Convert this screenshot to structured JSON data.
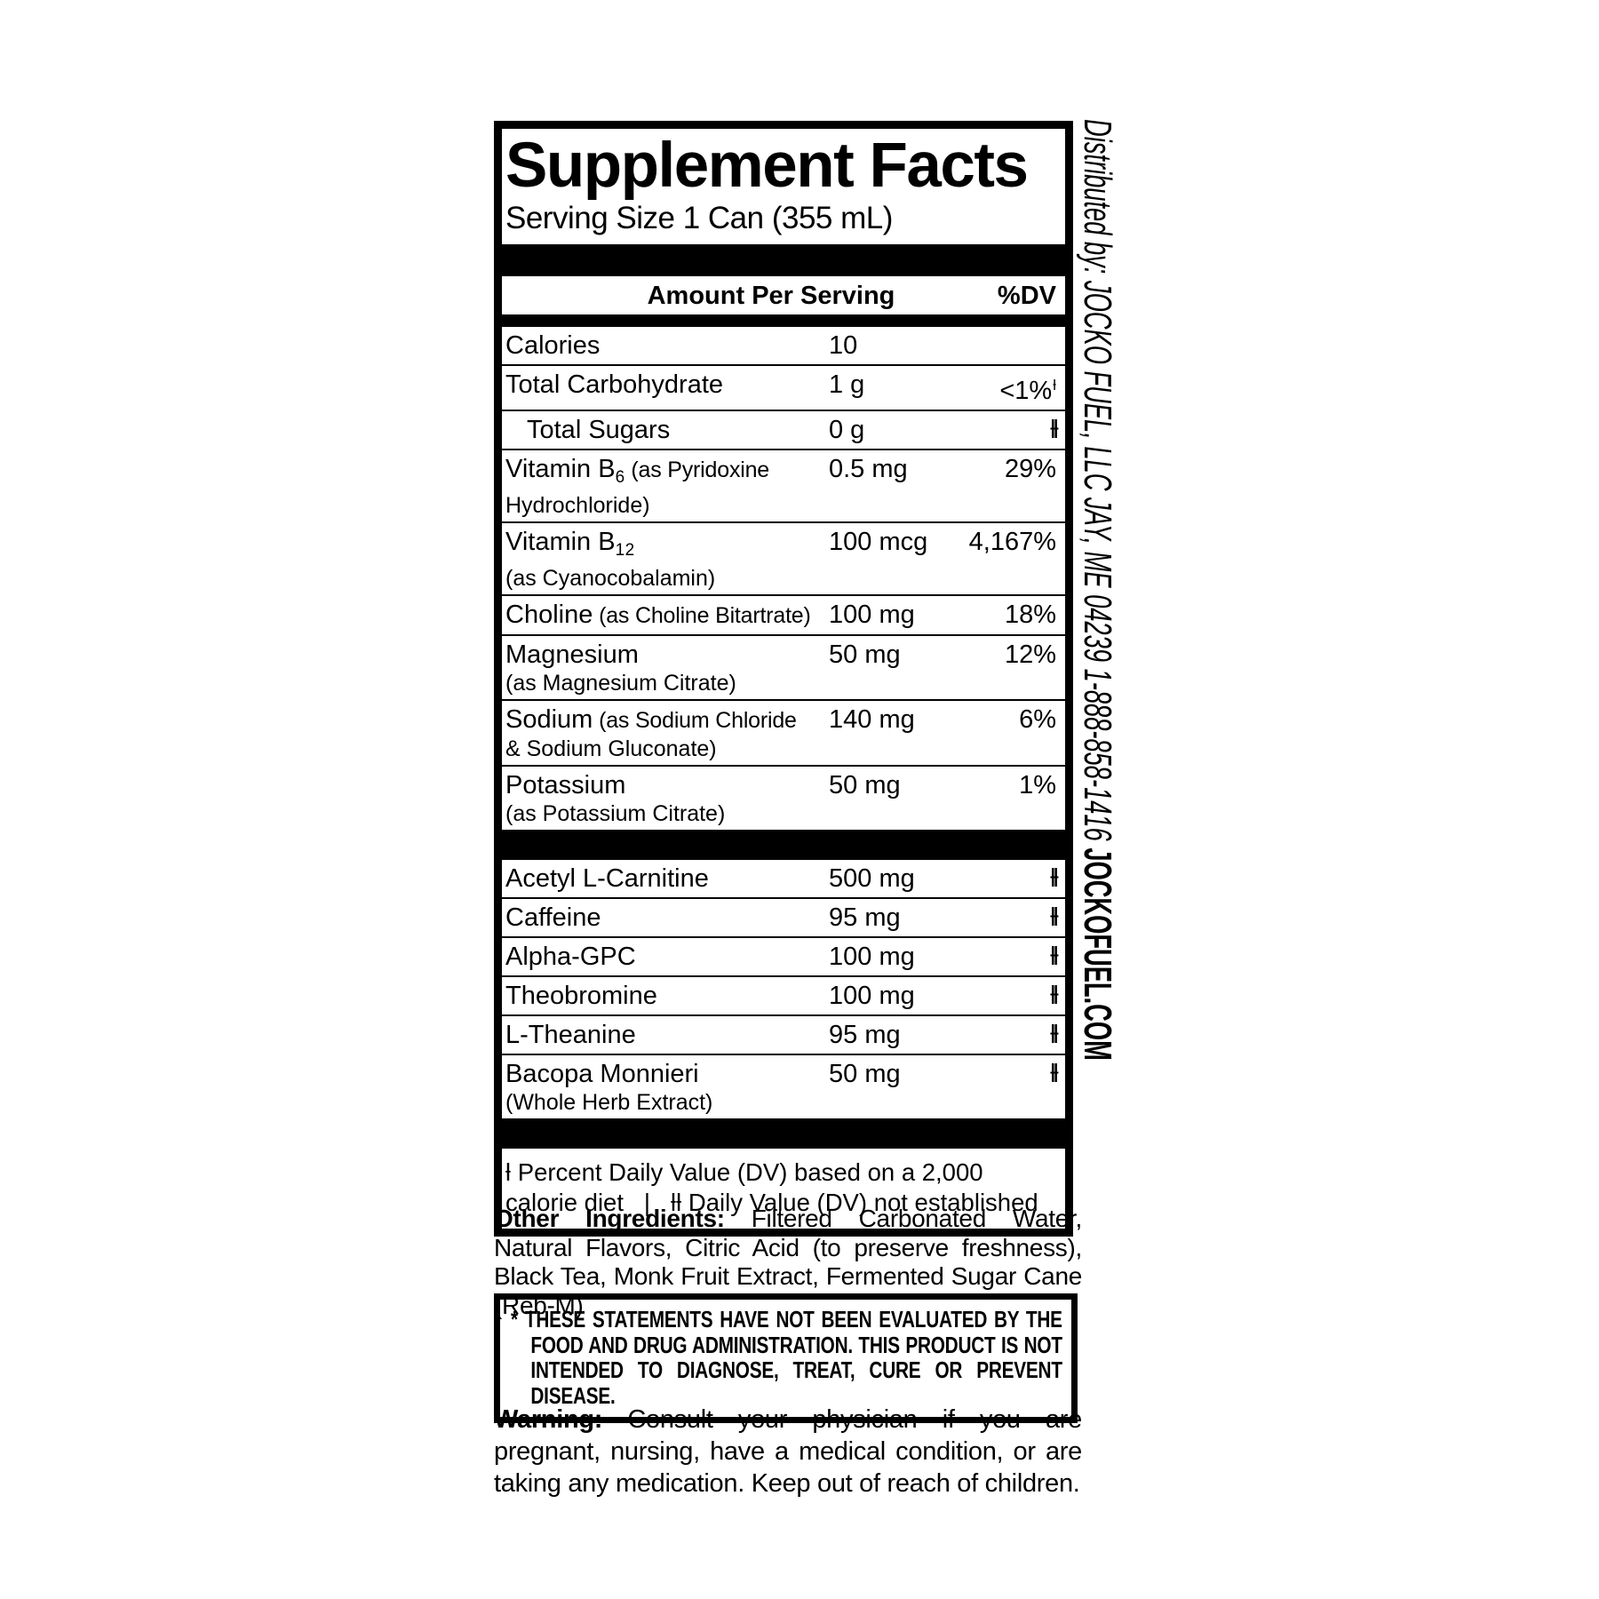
{
  "page": {
    "background": "#ffffff",
    "ink": "#000000"
  },
  "label": {
    "title": "Supplement Facts",
    "serving_size": "Serving Size 1 Can (355 mL)",
    "columns": {
      "amount_header": "Amount Per Serving",
      "dv_header": "%DV"
    },
    "section1": [
      {
        "name": "Calories",
        "amount": "10",
        "dv": ""
      },
      {
        "name": "Total Carbohydrate",
        "amount": "1 g",
        "dv": "<1%",
        "dv_sup": "ƚ"
      },
      {
        "name": "Total Sugars",
        "indent": true,
        "amount": "0 g",
        "dv": "ƚƚ",
        "dv_symbol": true
      },
      {
        "name": "Vitamin B",
        "sub": "6",
        "paren": " (as Pyridoxine",
        "line2": "Hydrochloride)",
        "amount": "0.5 mg",
        "dv": "29%"
      },
      {
        "name": "Vitamin B",
        "sub": "12",
        "line2": "(as Cyanocobalamin)",
        "amount": "100 mcg",
        "dv": "4,167%"
      },
      {
        "name": "Choline",
        "paren": " (as Choline Bitartrate)",
        "amount": "100 mg",
        "dv": "18%"
      },
      {
        "name": "Magnesium",
        "line2": "(as Magnesium Citrate)",
        "amount": "50 mg",
        "dv": "12%"
      },
      {
        "name": "Sodium",
        "paren": " (as Sodium Chloride",
        "line2": "& Sodium Gluconate)",
        "amount": "140 mg",
        "dv": "6%"
      },
      {
        "name": "Potassium",
        "line2": "(as Potassium Citrate)",
        "amount": "50 mg",
        "dv": "1%"
      }
    ],
    "section2": [
      {
        "name": "Acetyl L-Carnitine",
        "amount": "500 mg",
        "dv": "ƚƚ",
        "dv_symbol": true
      },
      {
        "name": "Caffeine",
        "amount": "95 mg",
        "dv": "ƚƚ",
        "dv_symbol": true
      },
      {
        "name": "Alpha-GPC",
        "amount": "100 mg",
        "dv": "ƚƚ",
        "dv_symbol": true
      },
      {
        "name": "Theobromine",
        "amount": "100 mg",
        "dv": "ƚƚ",
        "dv_symbol": true
      },
      {
        "name": "L-Theanine",
        "amount": "95 mg",
        "dv": "ƚƚ",
        "dv_symbol": true
      },
      {
        "name": "Bacopa Monnieri",
        "line2": "(Whole Herb Extract)",
        "amount": "50 mg",
        "dv": "ƚƚ",
        "dv_symbol": true
      }
    ],
    "footnote": {
      "line1": "ƚ Percent Daily Value (DV) based on a 2,000",
      "line2": "calorie diet   |   ƚƚ Daily Value (DV) not established"
    }
  },
  "distributor": {
    "text": "Distributed by: JOCKO FUEL, LLC JAY, ME 04239 1-888-858-1416 ",
    "site": "JOCKOFUEL.COM"
  },
  "other_ingredients": {
    "lead": "Other Ingredients:",
    "text": " Filtered Carbonated Water, Natural Flavors, Citric Acid (to preserve freshness), Black Tea, Monk Fruit Extract, Fermented Sugar Cane (Reb-M)"
  },
  "disclaimer": {
    "asterisk": "*",
    "text": "THESE STATEMENTS HAVE NOT BEEN EVALUATED BY THE FOOD AND DRUG ADMINISTRATION. THIS PRODUCT IS NOT INTENDED TO DIAGNOSE, TREAT, CURE OR PREVENT DISEASE."
  },
  "warning": {
    "lead": "Warning:",
    "text": " Consult your physician if you are pregnant, nursing, have a medical condition, or are taking any medication. Keep out of reach of children."
  }
}
